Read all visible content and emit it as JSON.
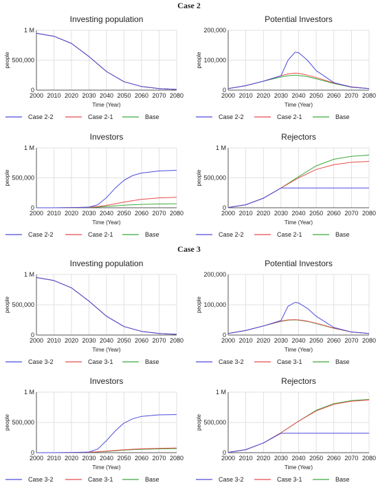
{
  "sections": [
    {
      "title": "Case 2"
    },
    {
      "title": "Case 3"
    }
  ],
  "chart_data": [
    {
      "type": "line",
      "section": "Case 2",
      "title": "Investing population",
      "xlabel": "Time (Year)",
      "ylabel": "people",
      "xlim": [
        2000,
        2080
      ],
      "ylim": [
        0,
        1000000
      ],
      "xticks": [
        "2000",
        "2010",
        "2020",
        "2030",
        "2040",
        "2050",
        "2060",
        "2070",
        "2080"
      ],
      "yticks": [
        "0",
        "500,000",
        "1 M"
      ],
      "x": [
        2000,
        2010,
        2020,
        2030,
        2040,
        2050,
        2060,
        2070,
        2080
      ],
      "series": [
        {
          "name": "Case 2-2",
          "color": "#4a4adf",
          "values": [
            950000,
            900000,
            780000,
            560000,
            310000,
            140000,
            60000,
            25000,
            12000
          ]
        },
        {
          "name": "Case 2-1",
          "color": "#e84a4a",
          "values": [
            950000,
            900000,
            780000,
            560000,
            310000,
            140000,
            60000,
            25000,
            12000
          ]
        },
        {
          "name": "Base",
          "color": "#3aa83a",
          "values": [
            950000,
            900000,
            780000,
            560000,
            310000,
            140000,
            60000,
            25000,
            12000
          ]
        }
      ],
      "legend": [
        "Case 2-2",
        "Case 2-1",
        "Base"
      ]
    },
    {
      "type": "line",
      "section": "Case 2",
      "title": "Potential Investors",
      "xlabel": "Time (Year)",
      "ylabel": "people",
      "xlim": [
        2000,
        2080
      ],
      "ylim": [
        0,
        200000
      ],
      "xticks": [
        "2000",
        "2010",
        "2020",
        "2030",
        "2040",
        "2050",
        "2060",
        "2070",
        "2080"
      ],
      "yticks": [
        "0",
        "100,000",
        "200,000"
      ],
      "x": [
        2000,
        2010,
        2020,
        2030,
        2034,
        2038,
        2040,
        2045,
        2050,
        2060,
        2070,
        2080
      ],
      "series": [
        {
          "name": "Case 2-2",
          "color": "#4a4adf",
          "values": [
            5000,
            15000,
            30000,
            48000,
            100000,
            127000,
            125000,
            100000,
            65000,
            25000,
            10000,
            5000
          ]
        },
        {
          "name": "Case 2-1",
          "color": "#e84a4a",
          "values": [
            5000,
            15000,
            30000,
            48000,
            54000,
            57000,
            56000,
            50000,
            42000,
            24000,
            11000,
            5000
          ]
        },
        {
          "name": "Base",
          "color": "#3aa83a",
          "values": [
            5000,
            15000,
            30000,
            44000,
            48000,
            50000,
            49000,
            45000,
            38000,
            22000,
            10000,
            5000
          ]
        }
      ]
    },
    {
      "type": "line",
      "section": "Case 2",
      "title": "Investors",
      "xlabel": "Time (Year)",
      "ylabel": "people",
      "xlim": [
        2000,
        2080
      ],
      "ylim": [
        0,
        1000000
      ],
      "xticks": [
        "2000",
        "2010",
        "2020",
        "2030",
        "2040",
        "2050",
        "2060",
        "2070",
        "2080"
      ],
      "yticks": [
        "0",
        "500,000",
        "1 M"
      ],
      "x": [
        2000,
        2010,
        2020,
        2030,
        2035,
        2040,
        2045,
        2050,
        2055,
        2060,
        2070,
        2080
      ],
      "series": [
        {
          "name": "Case 2-2",
          "color": "#4a4adf",
          "values": [
            0,
            0,
            2000,
            10000,
            50000,
            170000,
            330000,
            460000,
            540000,
            580000,
            615000,
            625000
          ]
        },
        {
          "name": "Case 2-1",
          "color": "#e84a4a",
          "values": [
            0,
            0,
            2000,
            9000,
            20000,
            40000,
            65000,
            95000,
            120000,
            140000,
            165000,
            175000
          ]
        },
        {
          "name": "Base",
          "color": "#3aa83a",
          "values": [
            0,
            0,
            1500,
            6000,
            12000,
            22000,
            32000,
            42000,
            50000,
            56000,
            63000,
            67000
          ]
        }
      ],
      "legend": [
        "Case 2-2",
        "Case 2-1",
        "Base"
      ]
    },
    {
      "type": "line",
      "section": "Case 2",
      "title": "Rejectors",
      "xlabel": "Time (Year)",
      "ylabel": "people",
      "xlim": [
        2000,
        2080
      ],
      "ylim": [
        0,
        1000000
      ],
      "xticks": [
        "2000",
        "2010",
        "2020",
        "2030",
        "2040",
        "2050",
        "2060",
        "2070",
        "2080"
      ],
      "yticks": [
        "0",
        "500,000",
        "1 M"
      ],
      "x": [
        2000,
        2010,
        2020,
        2030,
        2040,
        2050,
        2060,
        2070,
        2080
      ],
      "series": [
        {
          "name": "Case 2-2",
          "color": "#4a4adf",
          "values": [
            5000,
            50000,
            160000,
            330000,
            330000,
            330000,
            330000,
            330000,
            330000
          ]
        },
        {
          "name": "Case 2-1",
          "color": "#e84a4a",
          "values": [
            5000,
            50000,
            160000,
            330000,
            500000,
            640000,
            720000,
            760000,
            775000
          ]
        },
        {
          "name": "Base",
          "color": "#3aa83a",
          "values": [
            5000,
            50000,
            160000,
            330000,
            520000,
            700000,
            810000,
            860000,
            880000
          ]
        }
      ]
    },
    {
      "type": "line",
      "section": "Case 3",
      "title": "Investing population",
      "xlabel": "Time (Year)",
      "ylabel": "people",
      "xlim": [
        2000,
        2080
      ],
      "ylim": [
        0,
        1000000
      ],
      "xticks": [
        "2000",
        "2010",
        "2020",
        "2030",
        "2040",
        "2050",
        "2060",
        "2070",
        "2080"
      ],
      "yticks": [
        "0",
        "500,000",
        "1 M"
      ],
      "x": [
        2000,
        2010,
        2020,
        2030,
        2040,
        2050,
        2060,
        2070,
        2080
      ],
      "series": [
        {
          "name": "Case  3-2",
          "color": "#4a4adf",
          "values": [
            950000,
            900000,
            780000,
            560000,
            310000,
            140000,
            60000,
            25000,
            12000
          ]
        },
        {
          "name": "Case  3-1",
          "color": "#e84a4a",
          "values": [
            950000,
            900000,
            780000,
            560000,
            310000,
            140000,
            60000,
            25000,
            12000
          ]
        },
        {
          "name": "Base",
          "color": "#3aa83a",
          "values": [
            950000,
            900000,
            780000,
            560000,
            310000,
            140000,
            60000,
            25000,
            12000
          ]
        }
      ],
      "legend": [
        "Case  3-2",
        "Case  3-1",
        "Base"
      ]
    },
    {
      "type": "line",
      "section": "Case 3",
      "title": "Potential Investors",
      "xlabel": "Time (Year)",
      "ylabel": "people",
      "xlim": [
        2000,
        2080
      ],
      "ylim": [
        0,
        200000
      ],
      "xticks": [
        "2000",
        "2010",
        "2020",
        "2030",
        "2040",
        "2050",
        "2060",
        "2070",
        "2080"
      ],
      "yticks": [
        "0",
        "100,000",
        "200,000"
      ],
      "x": [
        2000,
        2010,
        2020,
        2030,
        2034,
        2038,
        2040,
        2045,
        2050,
        2060,
        2070,
        2080
      ],
      "series": [
        {
          "name": "Case  3-2",
          "color": "#4a4adf",
          "values": [
            5000,
            15000,
            30000,
            48000,
            95000,
            108000,
            106000,
            88000,
            62000,
            25000,
            10000,
            5000
          ]
        },
        {
          "name": "Case  3-1",
          "color": "#e84a4a",
          "values": [
            5000,
            15000,
            30000,
            46000,
            50000,
            51000,
            50000,
            46000,
            39000,
            23000,
            10000,
            5000
          ]
        },
        {
          "name": "Base",
          "color": "#3aa83a",
          "values": [
            5000,
            15000,
            30000,
            45000,
            49000,
            50000,
            49000,
            45000,
            38000,
            22000,
            10000,
            5000
          ]
        }
      ]
    },
    {
      "type": "line",
      "section": "Case 3",
      "title": "Investors",
      "xlabel": "Time (Year)",
      "ylabel": "people",
      "xlim": [
        2000,
        2080
      ],
      "ylim": [
        0,
        1000000
      ],
      "xticks": [
        "2000",
        "2010",
        "2020",
        "2030",
        "2040",
        "2050",
        "2060",
        "2070",
        "2080"
      ],
      "yticks": [
        "0",
        "500,000",
        "1 M"
      ],
      "x": [
        2000,
        2010,
        2020,
        2030,
        2035,
        2040,
        2045,
        2050,
        2055,
        2060,
        2070,
        2080
      ],
      "series": [
        {
          "name": "Case  3-2",
          "color": "#4a4adf",
          "values": [
            0,
            0,
            2000,
            10000,
            60000,
            200000,
            360000,
            490000,
            560000,
            600000,
            625000,
            630000
          ]
        },
        {
          "name": "Case  3-1",
          "color": "#e84a4a",
          "values": [
            0,
            0,
            1500,
            7000,
            14000,
            25000,
            37000,
            48000,
            57000,
            64000,
            72000,
            77000
          ]
        },
        {
          "name": "Base",
          "color": "#3aa83a",
          "values": [
            0,
            0,
            1500,
            6000,
            12000,
            22000,
            32000,
            42000,
            50000,
            56000,
            63000,
            67000
          ]
        }
      ],
      "legend": [
        "Case  3-2",
        "Case  3-1",
        "Base"
      ]
    },
    {
      "type": "line",
      "section": "Case 3",
      "title": "Rejectors",
      "xlabel": "Time (Year)",
      "ylabel": "people",
      "xlim": [
        2000,
        2080
      ],
      "ylim": [
        0,
        1000000
      ],
      "xticks": [
        "2000",
        "2010",
        "2020",
        "2030",
        "2040",
        "2050",
        "2060",
        "2070",
        "2080"
      ],
      "yticks": [
        "0",
        "500,000",
        "1 M"
      ],
      "x": [
        2000,
        2010,
        2020,
        2030,
        2040,
        2050,
        2060,
        2070,
        2080
      ],
      "series": [
        {
          "name": "Case  3-2",
          "color": "#4a4adf",
          "values": [
            5000,
            50000,
            160000,
            320000,
            320000,
            320000,
            320000,
            320000,
            320000
          ]
        },
        {
          "name": "Case  3-1",
          "color": "#e84a4a",
          "values": [
            5000,
            50000,
            160000,
            330000,
            520000,
            690000,
            800000,
            850000,
            870000
          ]
        },
        {
          "name": "Base",
          "color": "#3aa83a",
          "values": [
            5000,
            50000,
            160000,
            330000,
            520000,
            700000,
            810000,
            860000,
            880000
          ]
        }
      ]
    }
  ]
}
